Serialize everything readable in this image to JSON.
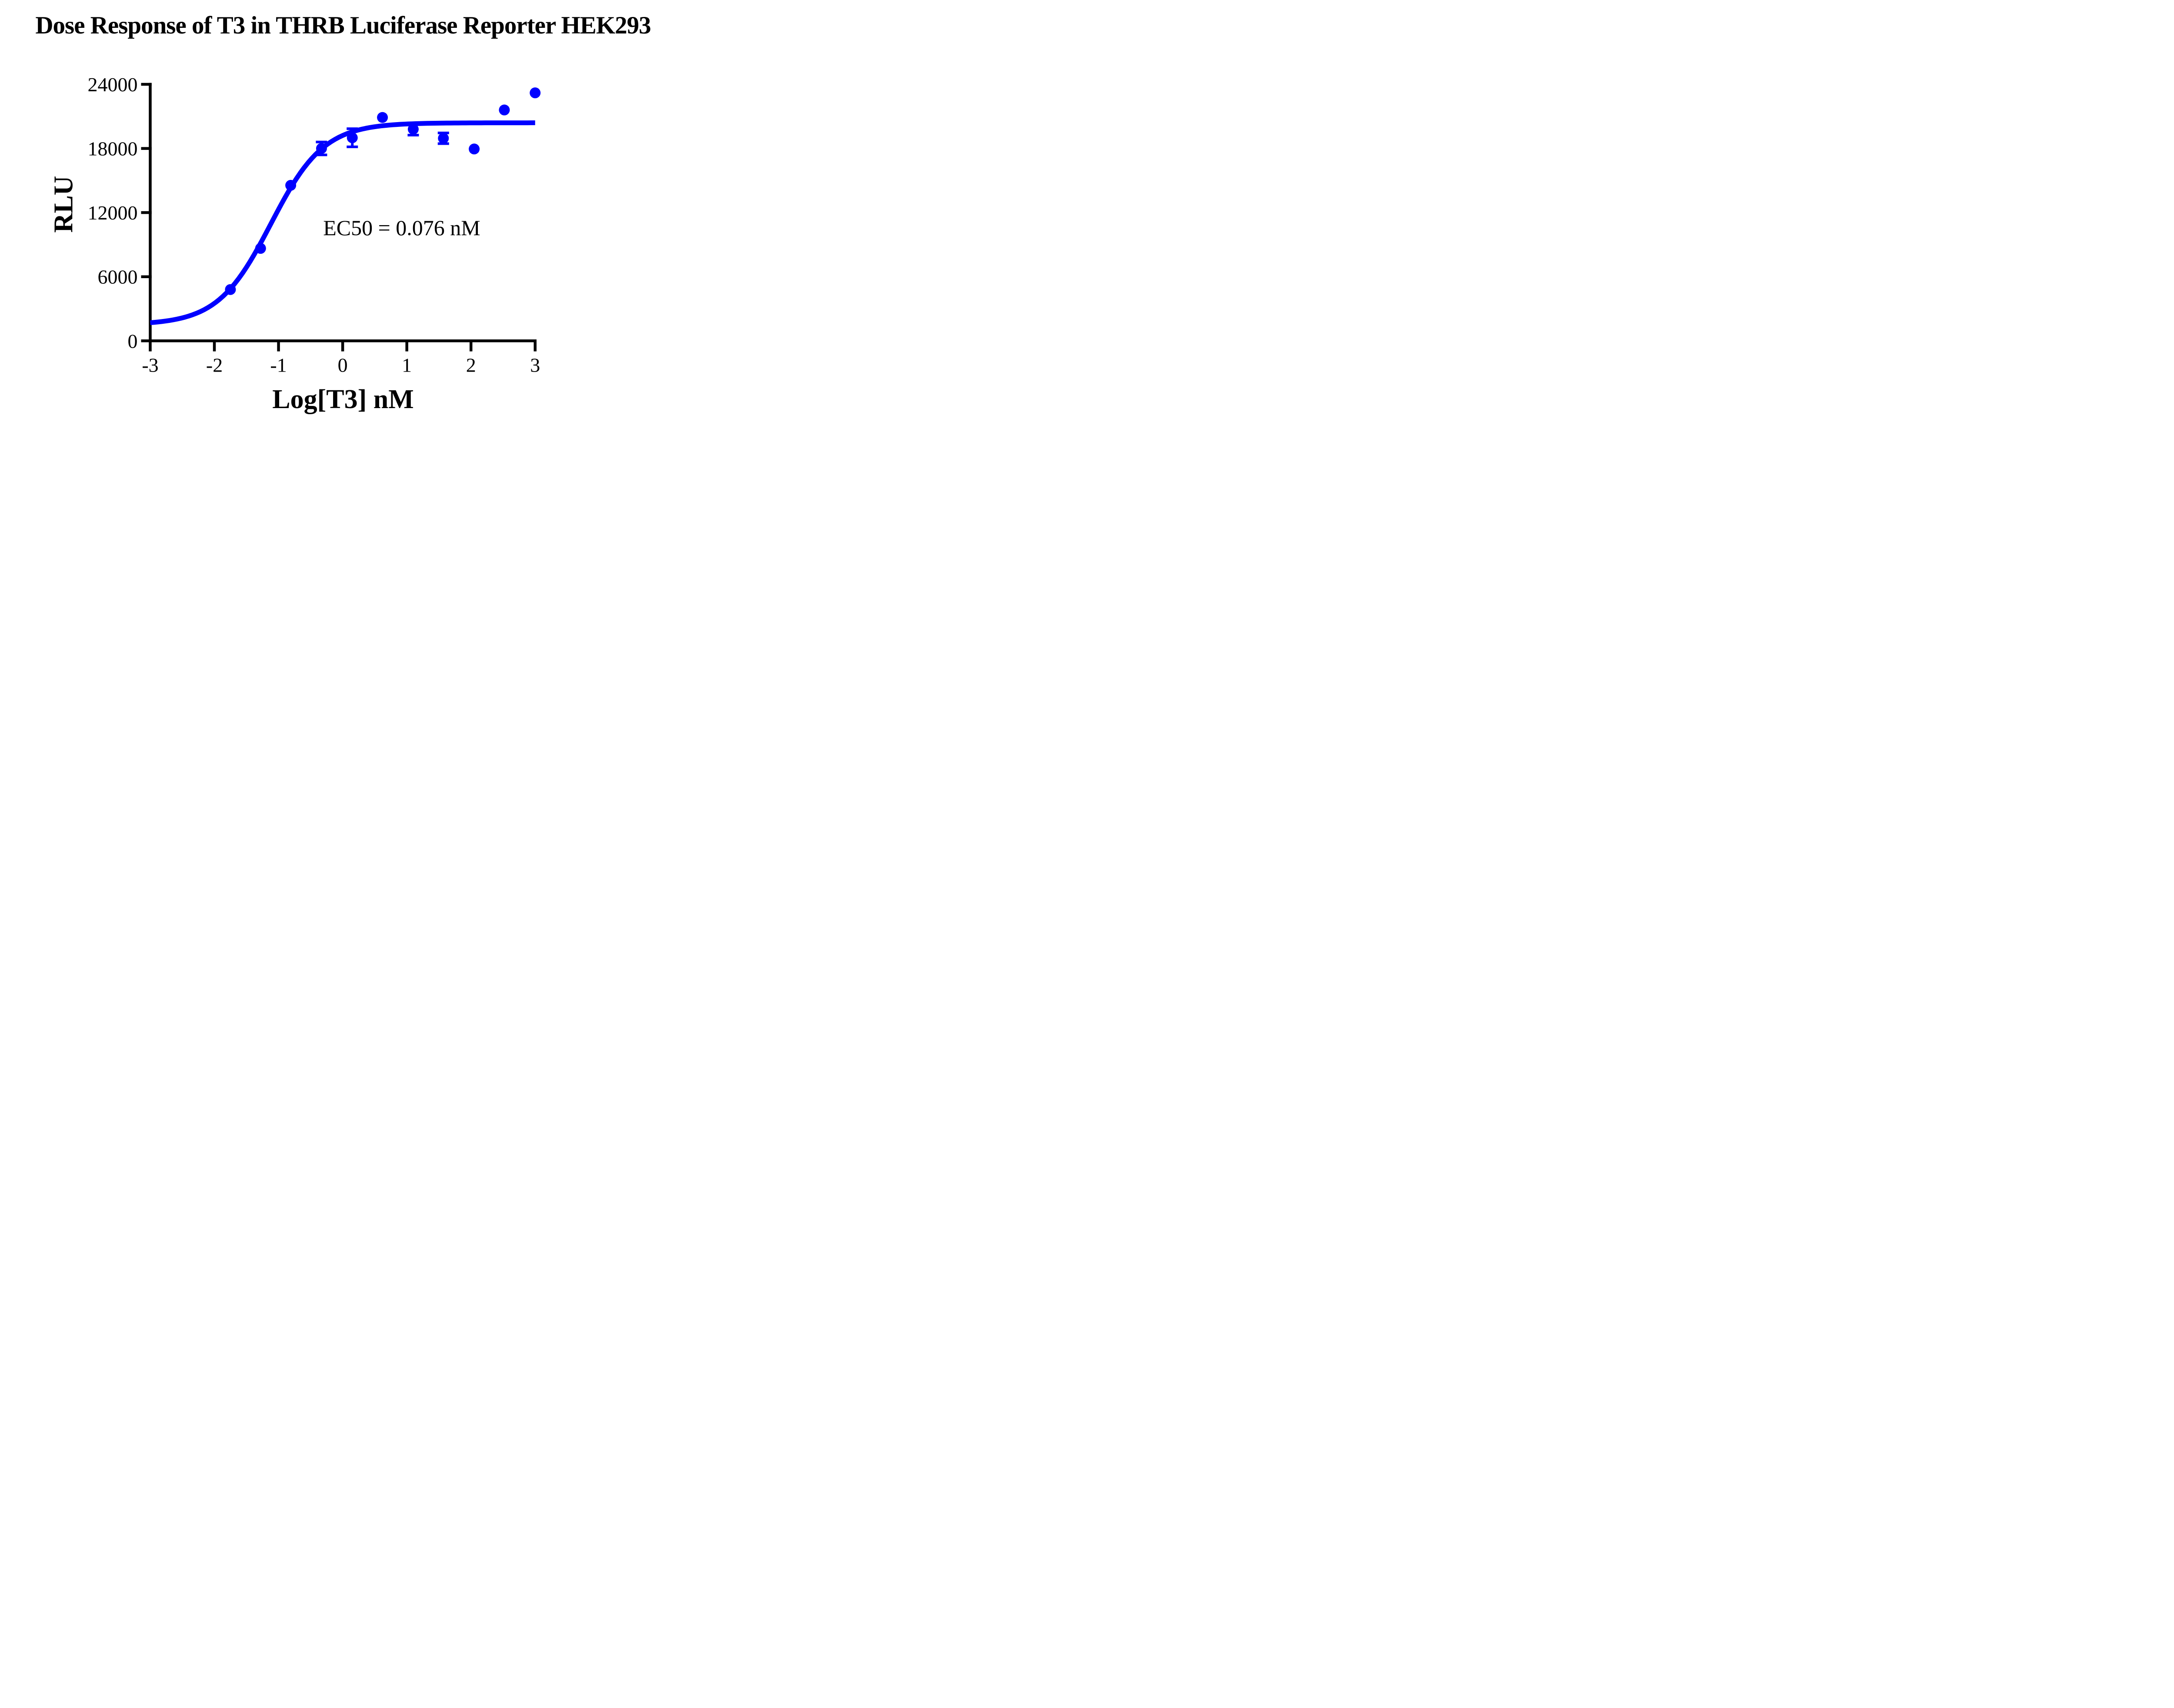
{
  "title": "Dose Response of T3 in THRB Luciferase Reporter HEK293",
  "annotation_text": "EC50 = 0.076 nM",
  "colors": {
    "series": "#0000FF",
    "axis": "#000000",
    "text": "#000000",
    "background": "#FFFFFF"
  },
  "chart_data": {
    "type": "scatter",
    "title": "Dose Response of T3 in THRB Luciferase Reporter HEK293",
    "xlabel": "Log[T3] nM",
    "ylabel": "RLU",
    "xlim": [
      -3,
      3
    ],
    "ylim": [
      0,
      24000
    ],
    "x_ticks": [
      -3,
      -2,
      -1,
      0,
      1,
      2,
      3
    ],
    "x_tick_labels": [
      "-3",
      "-2",
      "-1",
      "0",
      "1",
      "2",
      "3"
    ],
    "y_ticks": [
      0,
      6000,
      12000,
      18000,
      24000
    ],
    "y_tick_labels": [
      "0",
      "6000",
      "12000",
      "18000",
      "24000"
    ],
    "grid": false,
    "legend": "none",
    "annotation": {
      "text": "EC50 = 0.076 nM",
      "x": 0.9,
      "y": 11200
    },
    "ec50_nM": 0.076,
    "series": [
      {
        "name": "T3",
        "marker": "circle",
        "color": "#0000FF",
        "points": [
          {
            "x": -1.75,
            "y": 4800,
            "err": 0
          },
          {
            "x": -1.28,
            "y": 8650,
            "err": 0
          },
          {
            "x": -0.81,
            "y": 14550,
            "err": 0
          },
          {
            "x": -0.33,
            "y": 18000,
            "err": 600
          },
          {
            "x": 0.15,
            "y": 19000,
            "err": 850
          },
          {
            "x": 0.62,
            "y": 20900,
            "err": 0
          },
          {
            "x": 1.1,
            "y": 19800,
            "err": 550
          },
          {
            "x": 1.57,
            "y": 18950,
            "err": 500
          },
          {
            "x": 2.05,
            "y": 17950,
            "err": 0
          },
          {
            "x": 2.52,
            "y": 21600,
            "err": 0
          },
          {
            "x": 3.0,
            "y": 23200,
            "err": 0
          }
        ]
      }
    ],
    "fit": {
      "model": "4PL sigmoid",
      "bottom": 1500,
      "top": 20400,
      "log_ec50": -1.119,
      "hill": 1.05
    }
  }
}
